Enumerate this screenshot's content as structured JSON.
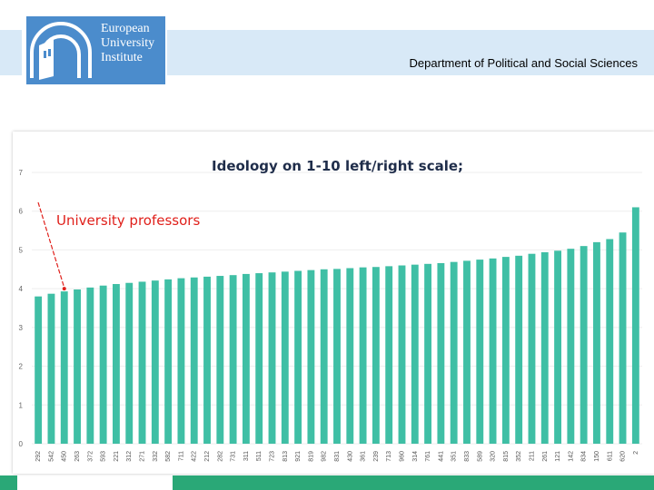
{
  "header": {
    "logo_lines": [
      "European",
      "University",
      "Institute"
    ],
    "department": "Department of Political and Social Sciences"
  },
  "colors": {
    "bar": "#3fbfa5",
    "header_band": "#d8e9f7",
    "logo_blue": "#4b8ccc",
    "footer_green": "#2aa877",
    "title": "#1f2d4a",
    "annotation": "#e0201b"
  },
  "chart_data": {
    "type": "bar",
    "title": "Ideology on 1-10 left/right scale;",
    "annotation": "University professors",
    "xlabel": "",
    "ylabel": "",
    "ylim": [
      0,
      7
    ],
    "yticks": [
      0,
      1,
      2,
      3,
      4,
      5,
      6,
      7
    ],
    "grid": true,
    "legend": "none",
    "categories": [
      "292",
      "542",
      "450",
      "263",
      "372",
      "593",
      "221",
      "312",
      "271",
      "332",
      "582",
      "711",
      "422",
      "212",
      "282",
      "731",
      "311",
      "511",
      "723",
      "813",
      "921",
      "819",
      "982",
      "831",
      "430",
      "361",
      "239",
      "713",
      "960",
      "314",
      "761",
      "441",
      "351",
      "833",
      "589",
      "320",
      "815",
      "352",
      "211",
      "261",
      "121",
      "142",
      "834",
      "150",
      "611",
      "620",
      "2"
    ],
    "values": [
      3.8,
      3.87,
      3.93,
      3.98,
      4.03,
      4.08,
      4.12,
      4.15,
      4.18,
      4.21,
      4.24,
      4.27,
      4.29,
      4.31,
      4.33,
      4.35,
      4.38,
      4.4,
      4.42,
      4.44,
      4.46,
      4.48,
      4.5,
      4.51,
      4.53,
      4.55,
      4.56,
      4.58,
      4.6,
      4.62,
      4.64,
      4.66,
      4.69,
      4.72,
      4.75,
      4.78,
      4.82,
      4.85,
      4.9,
      4.94,
      4.98,
      5.03,
      5.1,
      5.2,
      5.28,
      5.45,
      6.1
    ]
  }
}
